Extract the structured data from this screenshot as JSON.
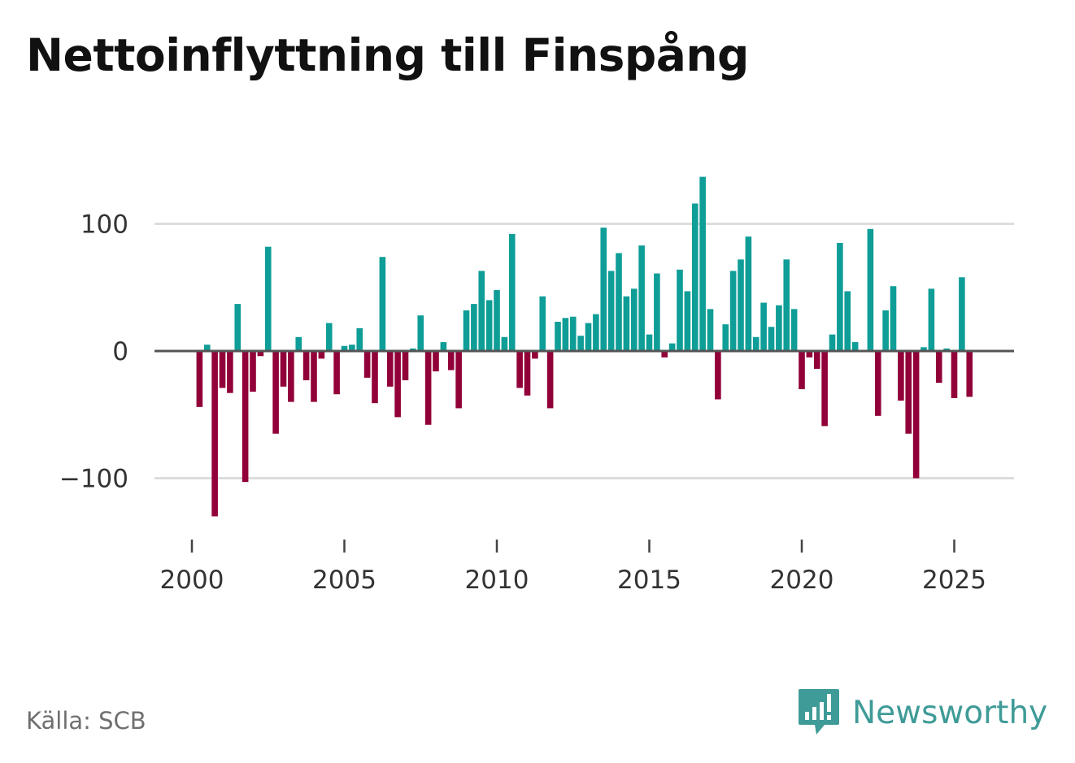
{
  "title": "Nettoinflyttning till Finspång",
  "source": "Källa: SCB",
  "brand": {
    "name": "Newsworthy",
    "logo_icon": "newsworthy-logo-icon",
    "color": "#3f9b97"
  },
  "colors": {
    "positive": "#0f9d97",
    "negative": "#910038",
    "grid": "#dddddd",
    "zero_line": "#555555",
    "tick_text": "#333333"
  },
  "chart_data": {
    "type": "bar",
    "title": "Nettoinflyttning till Finspång",
    "xlabel": "",
    "ylabel": "",
    "ylim": [
      -140,
      140
    ],
    "yticks": [
      {
        "value": 100,
        "label": "100"
      },
      {
        "value": 0,
        "label": "0"
      },
      {
        "value": -100,
        "label": "−100"
      }
    ],
    "xticks": [
      {
        "value": 2000,
        "label": "2000"
      },
      {
        "value": 2005,
        "label": "2005"
      },
      {
        "value": 2010,
        "label": "2010"
      },
      {
        "value": 2015,
        "label": "2015"
      },
      {
        "value": 2020,
        "label": "2020"
      },
      {
        "value": 2025,
        "label": "2025"
      }
    ],
    "x_start": 2000,
    "x_step": 0.25,
    "values": [
      -0.3,
      -44,
      5,
      -130,
      -29,
      -33,
      37,
      -103,
      -32,
      -4,
      82,
      -65,
      -28,
      -40,
      11,
      -23,
      -40,
      -6,
      22,
      -34,
      4,
      5,
      18,
      -21,
      -41,
      74,
      -28,
      -52,
      -23,
      2,
      28,
      -58,
      -16,
      7,
      -15,
      -45,
      32,
      37,
      63,
      40,
      48,
      11,
      92,
      -29,
      -35,
      -6,
      43,
      -45,
      23,
      26,
      27,
      12,
      22,
      29,
      97,
      63,
      77,
      43,
      49,
      83,
      13,
      61,
      -5,
      6,
      64,
      47,
      116,
      137,
      33,
      -38,
      21,
      63,
      72,
      90,
      11,
      38,
      19,
      36,
      72,
      33,
      -30,
      -5,
      -14,
      -59,
      13,
      85,
      47,
      7,
      -0.3,
      96,
      -51,
      32,
      51,
      -39,
      -65,
      -100,
      3,
      49,
      -25,
      2,
      -37,
      58,
      -36
    ]
  }
}
